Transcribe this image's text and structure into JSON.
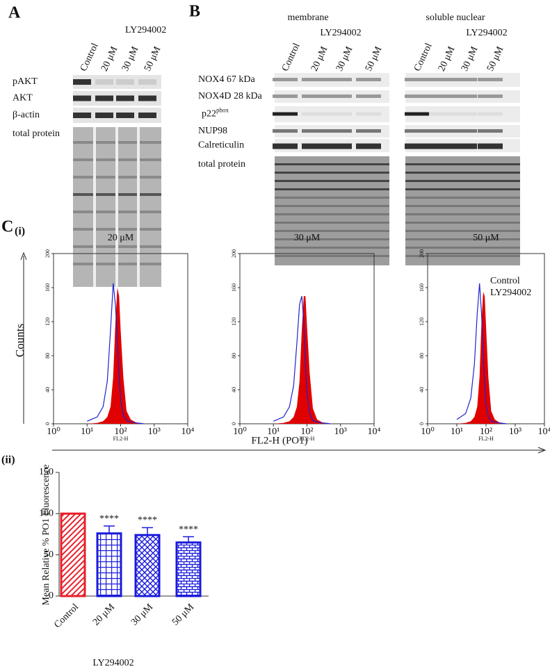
{
  "panelA": {
    "label": "A",
    "treatment": "LY294002",
    "lanes": [
      "Control",
      "20 μM",
      "30 μM",
      "50 μM"
    ],
    "rows": [
      "pAKT",
      "AKT",
      "β-actin",
      "total protein"
    ]
  },
  "panelB": {
    "label": "B",
    "groups": [
      {
        "title": "membrane",
        "treatment": "LY294002"
      },
      {
        "title": "soluble nuclear",
        "treatment": "LY294002"
      }
    ],
    "lanes": [
      "Control",
      "20 μM",
      "30 μM",
      "50 μM"
    ],
    "rows": [
      "NOX4 67 kDa",
      "NOX4D 28 kDa",
      {
        "text": "p22",
        "sup": "phox"
      },
      "NUP98",
      "Calreticulin",
      "total protein"
    ]
  },
  "panelC": {
    "label": "C",
    "sub1": "(i)",
    "sub2": "(ii)",
    "ylabel": "Counts",
    "xlabel": "FL2-H (PO1)"
  },
  "chart_data": [
    {
      "type": "histogram-line",
      "title": "20 μM",
      "xlabel": "FL2-H",
      "xscale": "log",
      "xlim": [
        1,
        10000
      ],
      "ylim": [
        0,
        200
      ],
      "xticks": [
        {
          "value": 1,
          "label": "10⁰"
        },
        {
          "value": 10,
          "label": "10¹"
        },
        {
          "value": 100,
          "label": "10²"
        },
        {
          "value": 1000,
          "label": "10³"
        },
        {
          "value": 10000,
          "label": "10⁴"
        }
      ],
      "yticks": [
        0,
        40,
        80,
        120,
        160,
        200
      ],
      "x": [
        10,
        20,
        30,
        40,
        50,
        60,
        70,
        80,
        90,
        100,
        120,
        150,
        200,
        300,
        500
      ],
      "series": [
        {
          "name": "Control",
          "color": "#e00000",
          "fill": true,
          "values": [
            0,
            1,
            3,
            8,
            20,
            55,
            120,
            160,
            150,
            110,
            55,
            15,
            5,
            1,
            0
          ]
        },
        {
          "name": "LY294002",
          "color": "#2222cc",
          "fill": false,
          "values": [
            3,
            8,
            20,
            50,
            110,
            165,
            140,
            95,
            55,
            28,
            10,
            4,
            2,
            1,
            0
          ]
        }
      ]
    },
    {
      "type": "histogram-line",
      "title": "30 μM",
      "xlabel": "FL2-H",
      "xscale": "log",
      "xlim": [
        1,
        10000
      ],
      "ylim": [
        0,
        200
      ],
      "xticks": [
        {
          "value": 1,
          "label": "10⁰"
        },
        {
          "value": 10,
          "label": "10¹"
        },
        {
          "value": 100,
          "label": "10²"
        },
        {
          "value": 1000,
          "label": "10³"
        },
        {
          "value": 10000,
          "label": "10⁴"
        }
      ],
      "yticks": [
        0,
        40,
        80,
        120,
        160,
        200
      ],
      "x": [
        10,
        20,
        30,
        40,
        50,
        60,
        70,
        80,
        90,
        100,
        120,
        150,
        200,
        300,
        500
      ],
      "series": [
        {
          "name": "Control",
          "color": "#e00000",
          "fill": true,
          "values": [
            0,
            1,
            3,
            8,
            20,
            50,
            110,
            150,
            150,
            115,
            60,
            18,
            5,
            1,
            0
          ]
        },
        {
          "name": "LY294002",
          "color": "#2222cc",
          "fill": false,
          "values": [
            3,
            8,
            20,
            45,
            95,
            140,
            150,
            120,
            70,
            35,
            12,
            4,
            2,
            1,
            0
          ]
        }
      ]
    },
    {
      "type": "histogram-line",
      "title": "50 μM",
      "xlabel": "FL2-H",
      "xscale": "log",
      "xlim": [
        1,
        10000
      ],
      "ylim": [
        0,
        200
      ],
      "xticks": [
        {
          "value": 1,
          "label": "10⁰"
        },
        {
          "value": 10,
          "label": "10¹"
        },
        {
          "value": 100,
          "label": "10²"
        },
        {
          "value": 1000,
          "label": "10³"
        },
        {
          "value": 10000,
          "label": "10⁴"
        }
      ],
      "yticks": [
        0,
        40,
        80,
        120,
        160,
        200
      ],
      "x": [
        10,
        20,
        30,
        40,
        50,
        60,
        70,
        80,
        90,
        100,
        120,
        150,
        200,
        300,
        500
      ],
      "legend": "top-right",
      "series": [
        {
          "name": "Control",
          "color": "#e00000",
          "fill": true,
          "values": [
            0,
            1,
            3,
            8,
            20,
            55,
            120,
            155,
            150,
            115,
            55,
            15,
            5,
            1,
            0
          ]
        },
        {
          "name": "LY294002",
          "color": "#2222cc",
          "fill": false,
          "values": [
            5,
            12,
            30,
            70,
            130,
            165,
            130,
            80,
            45,
            22,
            8,
            3,
            2,
            1,
            0
          ]
        }
      ]
    },
    {
      "type": "bar",
      "ylabel": "Mean Relative % PO1 Fluorescence",
      "xlabel": "LY294002",
      "categories": [
        "Control",
        "20 μM",
        "30 μM",
        "50 μM"
      ],
      "values": [
        100,
        76,
        74,
        65
      ],
      "errors": [
        null,
        9,
        9,
        7
      ],
      "annotations": [
        null,
        "****",
        "****",
        "****"
      ],
      "colors": [
        "#e8202a",
        "#1a1adc",
        "#1a1adc",
        "#1a1adc"
      ],
      "patterns": [
        "hatch",
        "grid",
        "crosshatch",
        "brick"
      ],
      "ylim": [
        0,
        150
      ],
      "yticks": [
        0,
        50,
        100,
        150
      ]
    }
  ]
}
